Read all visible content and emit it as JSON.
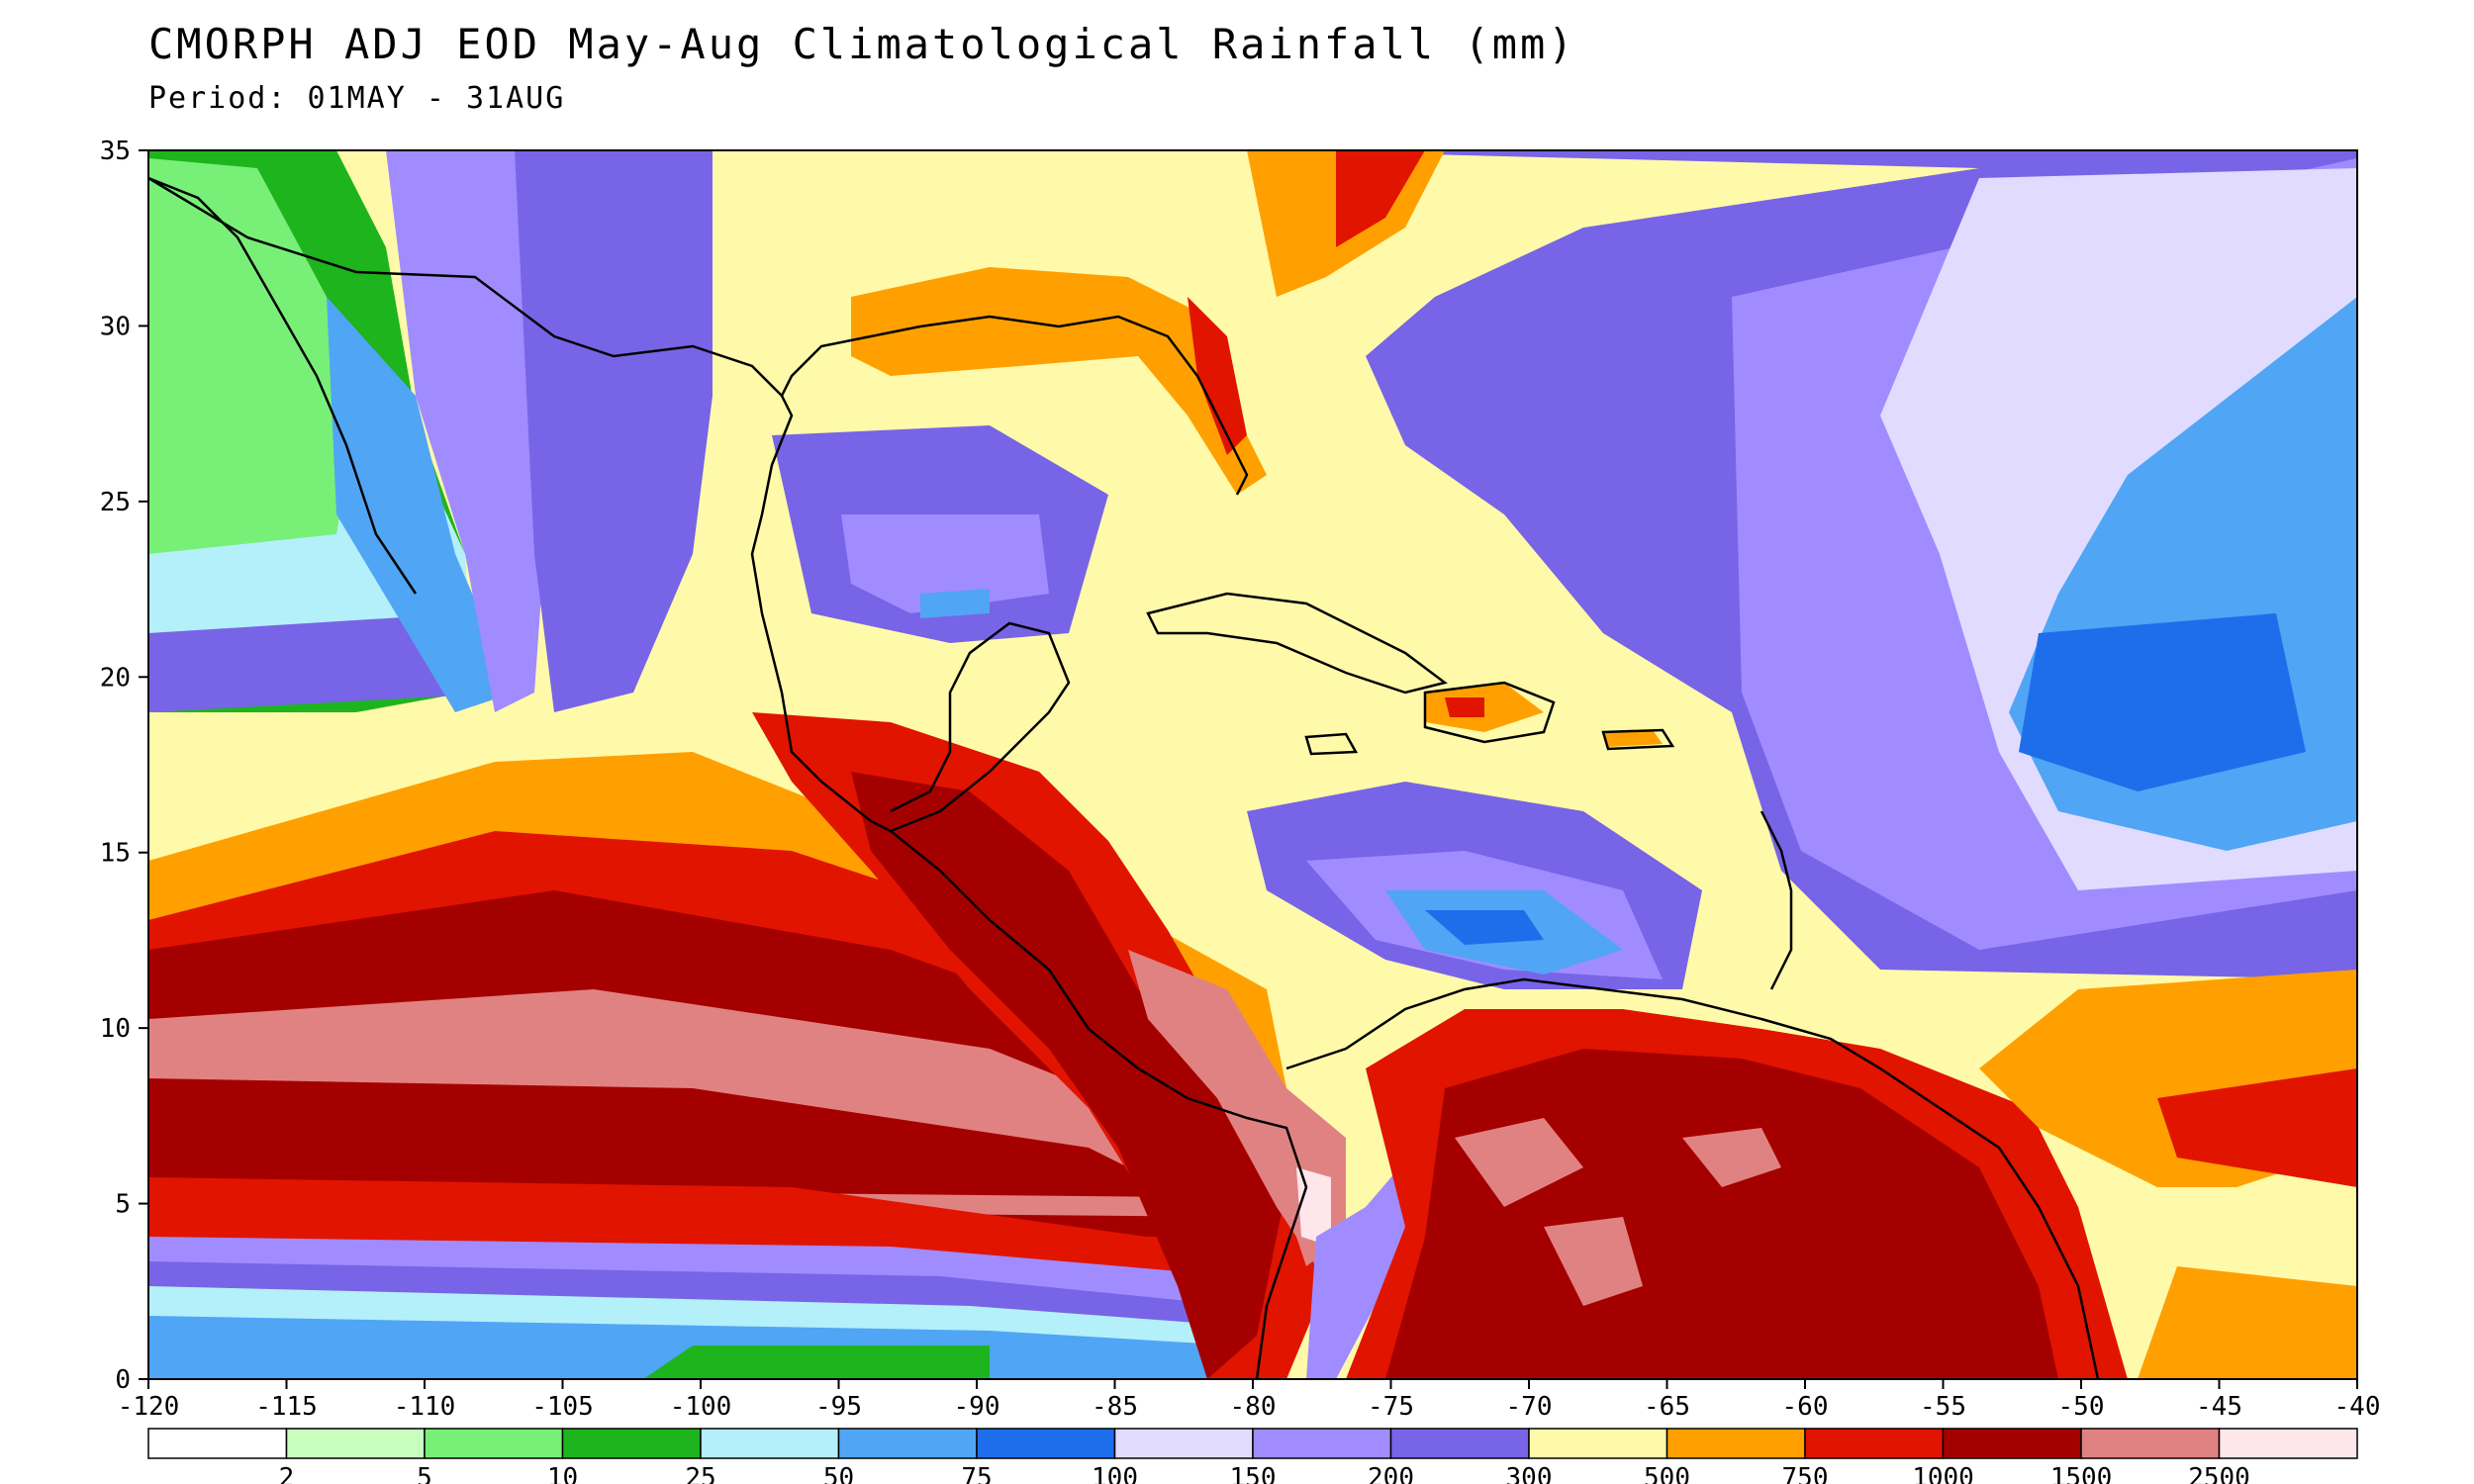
{
  "title": "CMORPH ADJ EOD May-Aug Climatological Rainfall (mm)",
  "subtitle": "Period: 01MAY - 31AUG",
  "axes": {
    "x_ticks": [
      "-120",
      "-115",
      "-110",
      "-105",
      "-100",
      "-95",
      "-90",
      "-85",
      "-80",
      "-75",
      "-70",
      "-65",
      "-60",
      "-55",
      "-50",
      "-45",
      "-40"
    ],
    "y_ticks": [
      "35",
      "30",
      "25",
      "20",
      "15",
      "10",
      "5",
      "0"
    ]
  },
  "legend": {
    "labels": [
      "2",
      "5",
      "10",
      "25",
      "50",
      "75",
      "100",
      "150",
      "200",
      "300",
      "500",
      "750",
      "1000",
      "1500",
      "2500"
    ],
    "colors": [
      "#ffffff",
      "#c8ffbe",
      "#78f078",
      "#1eb41e",
      "#b4f0fa",
      "#50a5f5",
      "#1e6eeb",
      "#e1dcff",
      "#a08cff",
      "#7864e6",
      "#fffaaa",
      "#ffa000",
      "#e11400",
      "#a50000",
      "#e18282",
      "#ffe6eb"
    ]
  },
  "colors": {
    "coast": "#000000",
    "border": "#d0d0d0"
  }
}
